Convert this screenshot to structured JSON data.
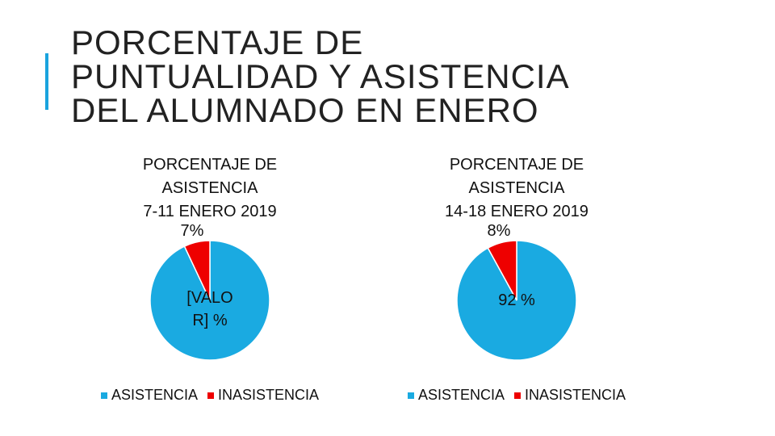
{
  "title": {
    "line1": "PORCENTAJE DE",
    "line2": "PUNTUALIDAD Y ASISTENCIA",
    "line3": "DEL ALUMNADO EN ENERO"
  },
  "colors": {
    "accent": "#1aa3de",
    "asistencia": "#1aaae1",
    "inasistencia": "#ee0000"
  },
  "chart_data": [
    {
      "type": "pie",
      "title_lines": [
        "PORCENTAJE DE",
        "ASISTENCIA",
        "7-11 ENERO 2019"
      ],
      "categories": [
        "ASISTENCIA",
        "INASISTENCIA"
      ],
      "values": [
        93,
        7
      ],
      "slice_labels": [
        "[VALO R] %",
        "7%"
      ],
      "legend": [
        "ASISTENCIA",
        "INASISTENCIA"
      ],
      "legend_position": "bottom"
    },
    {
      "type": "pie",
      "title_lines": [
        "PORCENTAJE DE",
        "ASISTENCIA",
        "14-18 ENERO 2019"
      ],
      "categories": [
        "ASISTENCIA",
        "INASISTENCIA"
      ],
      "values": [
        92,
        8
      ],
      "slice_labels": [
        "92 %",
        "8%"
      ],
      "legend": [
        "ASISTENCIA",
        "INASISTENCIA"
      ],
      "legend_position": "bottom"
    }
  ]
}
